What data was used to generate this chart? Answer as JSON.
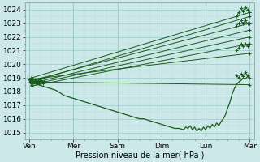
{
  "title": "Pression niveau de la mer( hPa )",
  "bg_color": "#cce8e8",
  "grid_major_color": "#99cccc",
  "grid_minor_color": "#bbdddd",
  "line_color": "#1a5c1a",
  "ylim": [
    1014.5,
    1024.5
  ],
  "yticks": [
    1015,
    1016,
    1017,
    1018,
    1019,
    1020,
    1021,
    1022,
    1023,
    1024
  ],
  "xlim": [
    -0.1,
    5.1
  ],
  "day_labels": [
    "Ven",
    "Mer",
    "Sam",
    "Dim",
    "Lun",
    "Mar"
  ],
  "day_positions": [
    0,
    1,
    2,
    3,
    4,
    5
  ],
  "straight_lines": [
    {
      "x0": 0.05,
      "y0": 1018.8,
      "x1": 5.0,
      "y1": 1023.0
    },
    {
      "x0": 0.05,
      "y0": 1018.6,
      "x1": 5.0,
      "y1": 1022.5
    },
    {
      "x0": 0.05,
      "y0": 1018.5,
      "x1": 5.0,
      "y1": 1022.0
    },
    {
      "x0": 0.05,
      "y0": 1018.4,
      "x1": 5.0,
      "y1": 1021.5
    },
    {
      "x0": 0.05,
      "y0": 1018.7,
      "x1": 5.0,
      "y1": 1023.5
    },
    {
      "x0": 0.05,
      "y0": 1018.9,
      "x1": 5.0,
      "y1": 1020.8
    },
    {
      "x0": 0.05,
      "y0": 1019.0,
      "x1": 5.0,
      "y1": 1023.8
    },
    {
      "x0": 0.05,
      "y0": 1018.7,
      "x1": 5.0,
      "y1": 1018.5
    }
  ],
  "observed_line": [
    0.0,
    1018.8,
    0.1,
    1018.6,
    0.2,
    1018.5,
    0.3,
    1018.4,
    0.4,
    1018.3,
    0.5,
    1018.2,
    0.6,
    1018.1,
    0.7,
    1017.9,
    0.8,
    1017.7,
    0.9,
    1017.6,
    1.0,
    1017.5,
    1.1,
    1017.4,
    1.2,
    1017.3,
    1.3,
    1017.2,
    1.4,
    1017.1,
    1.5,
    1017.0,
    1.6,
    1016.9,
    1.7,
    1016.8,
    1.8,
    1016.7,
    1.9,
    1016.6,
    2.0,
    1016.5,
    2.1,
    1016.4,
    2.2,
    1016.3,
    2.3,
    1016.2,
    2.4,
    1016.1,
    2.5,
    1016.0,
    2.6,
    1016.0,
    2.7,
    1015.9,
    2.8,
    1015.8,
    2.9,
    1015.7,
    3.0,
    1015.6,
    3.1,
    1015.5,
    3.2,
    1015.4,
    3.3,
    1015.3,
    3.4,
    1015.3,
    3.5,
    1015.2,
    3.55,
    1015.4,
    3.6,
    1015.3,
    3.65,
    1015.5,
    3.7,
    1015.2,
    3.75,
    1015.4,
    3.8,
    1015.1,
    3.85,
    1015.3,
    3.9,
    1015.1,
    3.95,
    1015.4,
    4.0,
    1015.2,
    4.05,
    1015.5,
    4.1,
    1015.3,
    4.15,
    1015.6,
    4.2,
    1015.4,
    4.25,
    1015.7,
    4.3,
    1015.5,
    4.35,
    1015.8,
    4.4,
    1016.0,
    4.45,
    1016.3,
    4.5,
    1016.8,
    4.55,
    1017.2,
    4.6,
    1017.8,
    4.65,
    1018.2,
    4.7,
    1018.5,
    4.75,
    1018.7,
    4.8,
    1018.8,
    4.85,
    1019.0,
    4.9,
    1018.9,
    4.95,
    1019.1,
    5.0,
    1019.0
  ],
  "dense_start_line": [
    0.0,
    1018.9,
    0.02,
    1018.7,
    0.04,
    1019.0,
    0.06,
    1018.6,
    0.08,
    1018.8,
    0.1,
    1018.7,
    0.12,
    1018.9,
    0.14,
    1018.6,
    0.16,
    1018.8,
    0.18,
    1018.7,
    0.2,
    1018.8,
    0.22,
    1018.6,
    0.24,
    1018.9,
    0.26,
    1018.7,
    0.28,
    1018.8,
    0.3,
    1018.7,
    0.32,
    1018.6,
    0.34,
    1018.8
  ],
  "end_detail_lines": [
    {
      "points": [
        4.7,
        1019.2,
        4.75,
        1019.0,
        4.8,
        1019.3,
        4.85,
        1019.1,
        4.9,
        1019.4,
        4.95,
        1019.2,
        5.0,
        1019.0
      ]
    },
    {
      "points": [
        4.7,
        1023.5,
        4.75,
        1023.8,
        4.8,
        1024.1,
        4.85,
        1023.9,
        4.9,
        1024.2,
        4.95,
        1024.0,
        5.0,
        1023.8
      ]
    },
    {
      "points": [
        4.7,
        1022.8,
        4.75,
        1023.0,
        4.8,
        1023.2,
        4.85,
        1023.0,
        4.9,
        1023.2,
        4.95,
        1023.0,
        5.0,
        1023.0
      ]
    },
    {
      "points": [
        4.7,
        1021.0,
        4.75,
        1021.2,
        4.8,
        1021.5,
        4.85,
        1021.3,
        4.9,
        1021.5,
        4.95,
        1021.3,
        5.0,
        1021.5
      ]
    }
  ]
}
